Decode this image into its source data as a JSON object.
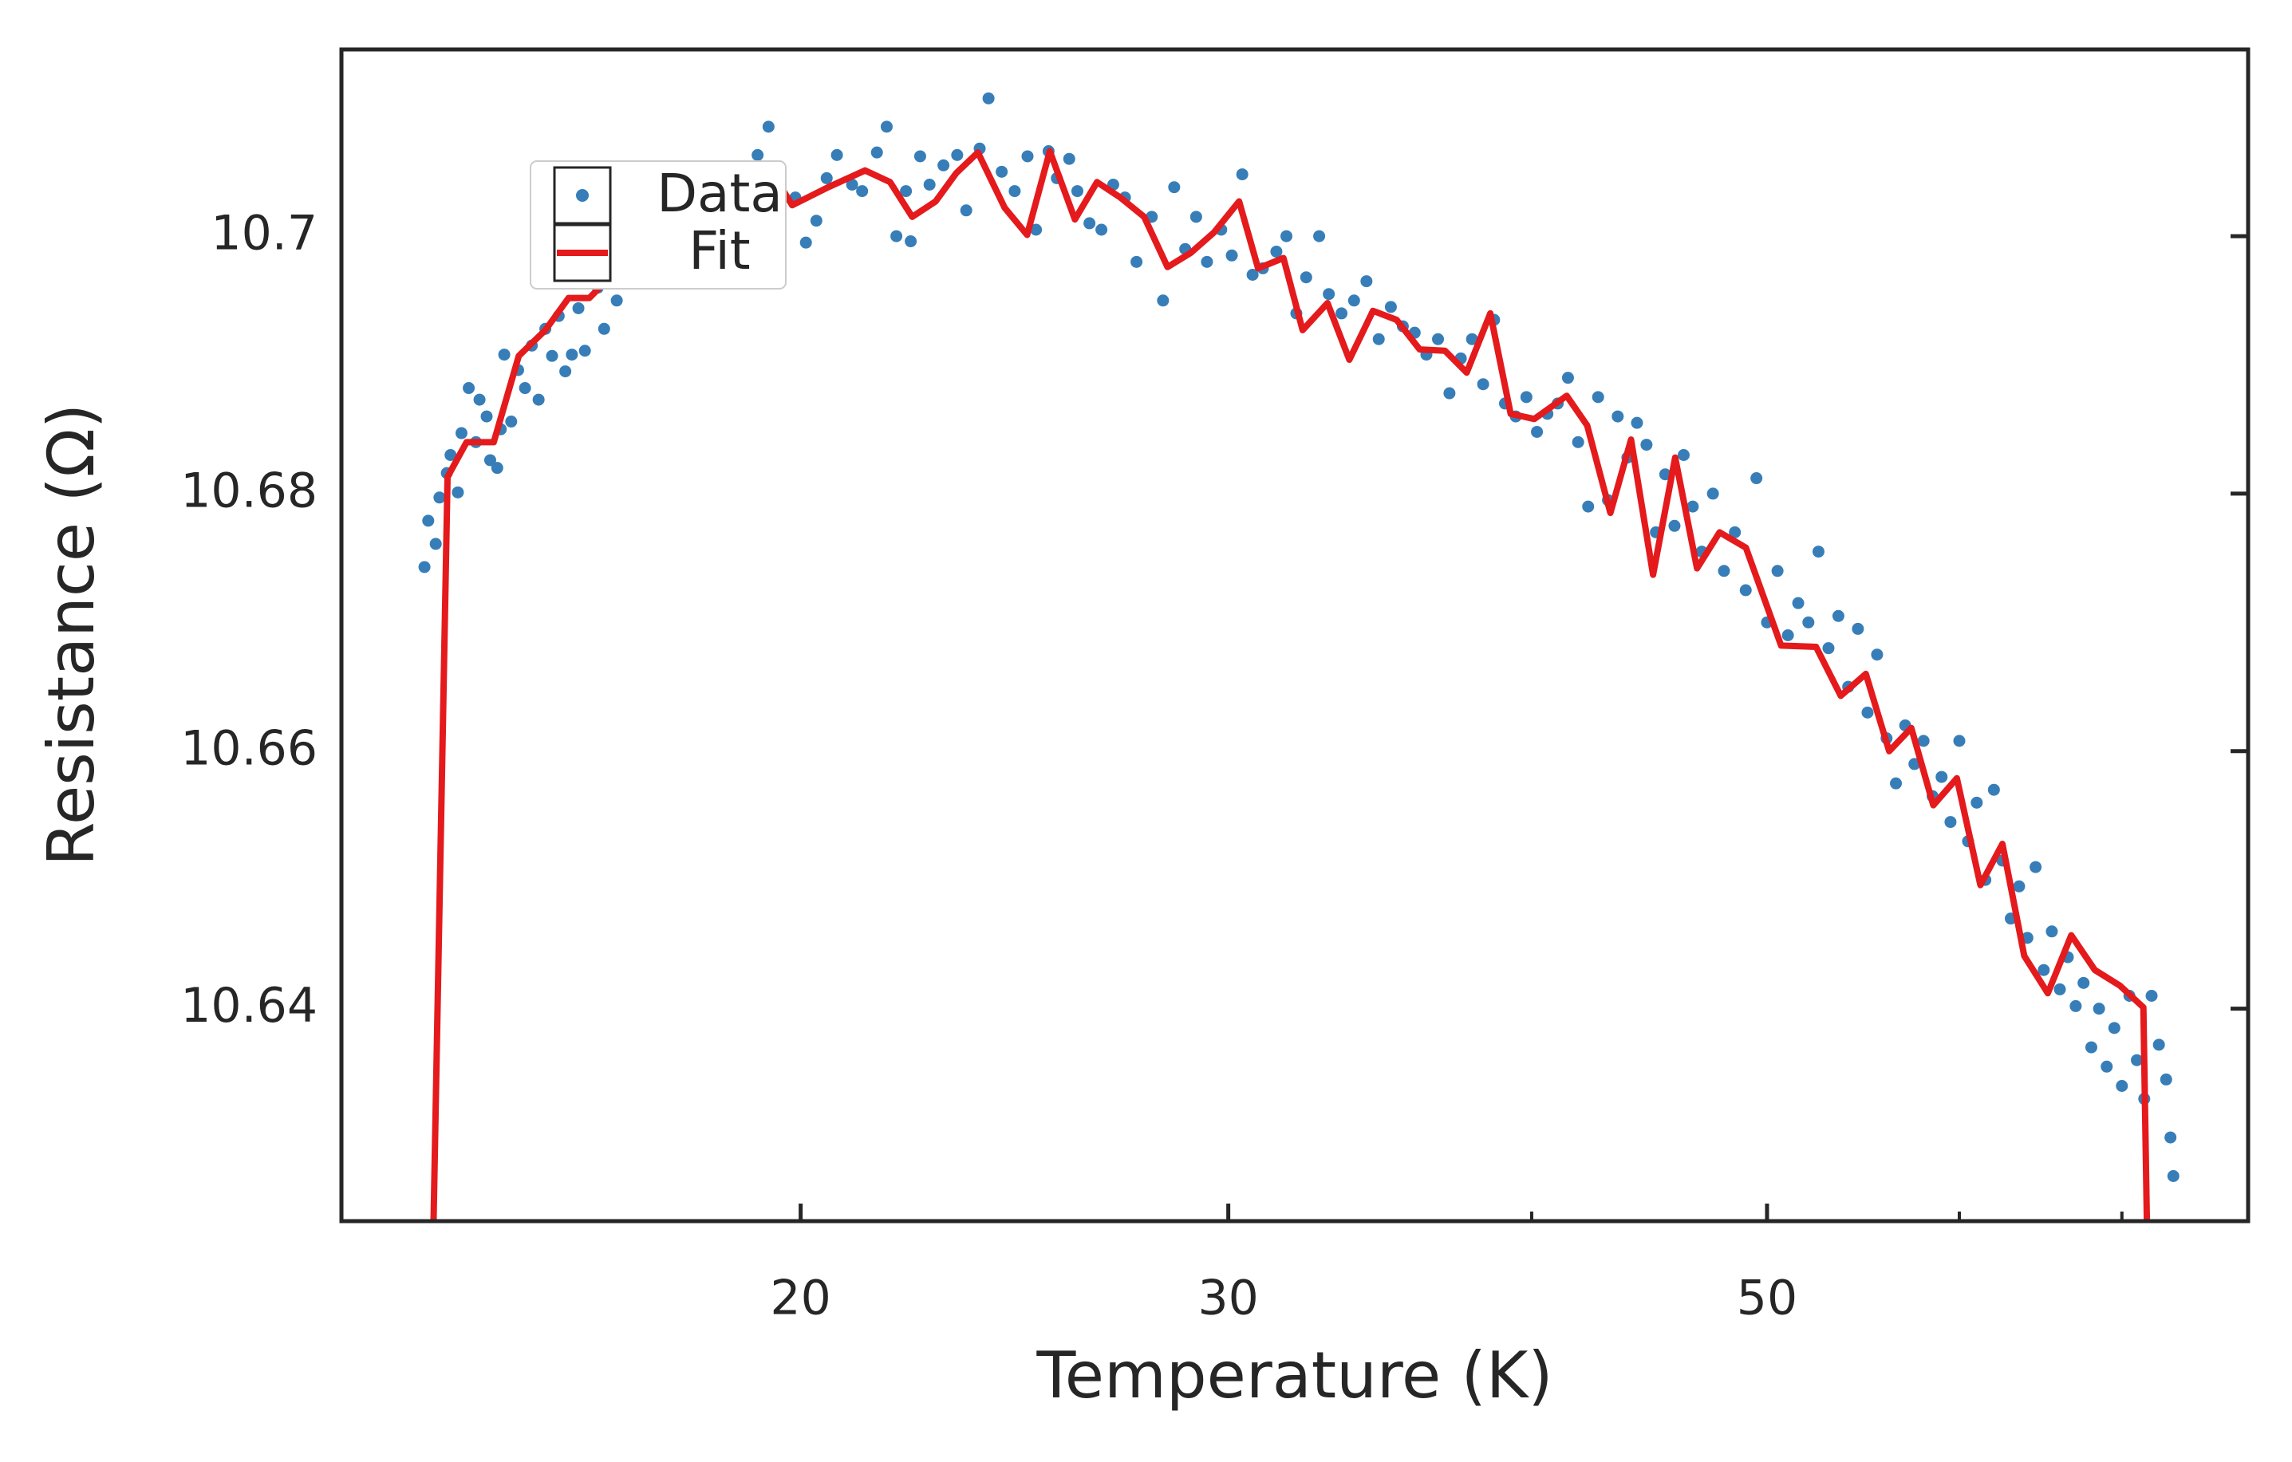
{
  "chart_data": {
    "type": "scatter",
    "xlabel": "Temperature (K)",
    "ylabel": "Resistance (Ω)",
    "xscale": "log",
    "xlim": [
      12.94,
      78.9
    ],
    "xticks": [
      20,
      30,
      50
    ],
    "xminor_ticks": [
      40,
      60,
      70
    ],
    "ylim": [
      10.6235,
      10.7145
    ],
    "yticks": [
      10.64,
      10.66,
      10.68,
      10.7
    ],
    "grid": false,
    "legend": "upper left",
    "series": [
      {
        "name": "Data",
        "type": "scatter",
        "color": "#377eb8",
        "x": [
          14.0,
          14.05,
          14.15,
          14.2,
          14.3,
          14.35,
          14.45,
          14.5,
          14.6,
          14.7,
          14.75,
          14.85,
          14.9,
          15.0,
          15.05,
          15.1,
          15.2,
          15.3,
          15.4,
          15.5,
          15.6,
          15.7,
          15.8,
          15.9,
          16.0,
          16.1,
          16.2,
          16.3,
          16.5,
          16.6,
          16.8,
          17.0,
          17.3,
          17.6,
          18.0,
          18.4,
          18.8,
          19.2,
          19.4,
          19.6,
          19.9,
          20.1,
          20.3,
          20.5,
          20.7,
          21.0,
          21.2,
          21.5,
          21.7,
          21.9,
          22.1,
          22.2,
          22.4,
          22.6,
          22.9,
          23.2,
          23.4,
          23.7,
          23.9,
          24.2,
          24.5,
          24.8,
          25.0,
          25.3,
          25.5,
          25.8,
          26.0,
          26.3,
          26.6,
          26.9,
          27.2,
          27.5,
          27.9,
          28.2,
          28.5,
          28.8,
          29.1,
          29.4,
          29.8,
          30.1,
          30.4,
          30.7,
          31.0,
          31.4,
          31.7,
          32.0,
          32.3,
          32.7,
          33.0,
          33.4,
          33.8,
          34.2,
          34.6,
          35.0,
          35.4,
          35.8,
          36.2,
          36.6,
          37.0,
          37.4,
          37.8,
          38.2,
          38.6,
          39.0,
          39.4,
          39.8,
          40.2,
          40.6,
          41.0,
          41.4,
          41.8,
          42.2,
          42.6,
          43.0,
          43.4,
          43.8,
          44.2,
          44.6,
          45.0,
          45.4,
          45.8,
          46.2,
          46.6,
          47.0,
          47.5,
          48.0,
          48.5,
          49.0,
          49.5,
          50.0,
          50.5,
          51.0,
          51.5,
          52.0,
          52.5,
          53.0,
          53.5,
          54.0,
          54.5,
          55.0,
          55.5,
          56.0,
          56.5,
          57.0,
          57.5,
          58.0,
          58.5,
          59.0,
          59.5,
          60.0,
          60.5,
          61.0,
          61.5,
          62.0,
          62.5,
          63.0,
          63.5,
          64.0,
          64.5,
          65.0,
          65.5,
          66.0,
          66.5,
          67.0,
          67.5,
          68.0,
          68.5,
          69.0,
          69.5,
          70.0,
          70.5,
          71.0,
          71.5,
          72.0,
          72.5,
          73.0,
          73.3,
          73.5
        ],
        "values": [
          10.6743,
          10.6779,
          10.6761,
          10.6797,
          10.6816,
          10.683,
          10.6801,
          10.6847,
          10.6882,
          10.684,
          10.6873,
          10.686,
          10.6826,
          10.682,
          10.685,
          10.6908,
          10.6856,
          10.6896,
          10.6882,
          10.6915,
          10.6873,
          10.6928,
          10.6907,
          10.6938,
          10.6895,
          10.6908,
          10.6944,
          10.6911,
          10.696,
          10.6928,
          10.695,
          10.6972,
          10.698,
          10.6995,
          10.7005,
          10.702,
          10.7048,
          10.7063,
          10.7085,
          10.7045,
          10.703,
          10.6995,
          10.7012,
          10.7045,
          10.7063,
          10.704,
          10.7035,
          10.7065,
          10.7085,
          10.7,
          10.7035,
          10.6996,
          10.7062,
          10.704,
          10.7055,
          10.7063,
          10.702,
          10.7068,
          10.7107,
          10.705,
          10.7035,
          10.7062,
          10.7005,
          10.7066,
          10.7045,
          10.706,
          10.7035,
          10.701,
          10.7005,
          10.704,
          10.703,
          10.698,
          10.7015,
          10.695,
          10.7038,
          10.699,
          10.7015,
          10.698,
          10.7005,
          10.6985,
          10.7048,
          10.697,
          10.6975,
          10.6988,
          10.7,
          10.694,
          10.6968,
          10.7,
          10.6955,
          10.694,
          10.695,
          10.6965,
          10.692,
          10.6945,
          10.693,
          10.6925,
          10.6908,
          10.692,
          10.6878,
          10.6905,
          10.692,
          10.6885,
          10.6935,
          10.687,
          10.686,
          10.6875,
          10.6848,
          10.6862,
          10.687,
          10.689,
          10.684,
          10.679,
          10.6875,
          10.6795,
          10.686,
          10.6828,
          10.6855,
          10.6838,
          10.677,
          10.6815,
          10.6775,
          10.683,
          10.679,
          10.6755,
          10.68,
          10.674,
          10.677,
          10.6725,
          10.6812,
          10.67,
          10.674,
          10.669,
          10.6715,
          10.67,
          10.6755,
          10.668,
          10.6705,
          10.665,
          10.6695,
          10.663,
          10.6675,
          10.661,
          10.6575,
          10.662,
          10.659,
          10.6608,
          10.6565,
          10.658,
          10.6545,
          10.6608,
          10.653,
          10.656,
          10.65,
          10.657,
          10.6515,
          10.647,
          10.6495,
          10.6455,
          10.651,
          10.643,
          10.646,
          10.6415,
          10.644,
          10.6402,
          10.642,
          10.637,
          10.64,
          10.6355,
          10.6385,
          10.634,
          10.641,
          10.636,
          10.633,
          10.641,
          10.6372,
          10.6345,
          10.63,
          10.627
        ]
      },
      {
        "name": "Fit",
        "type": "line",
        "color": "#e41a1c",
        "x": [
          14.11,
          14.31,
          14.57,
          14.95,
          15.31,
          15.7,
          16.05,
          16.37,
          16.79,
          17.26,
          17.99,
          18.76,
          19.43,
          19.84,
          20.53,
          21.26,
          21.77,
          22.23,
          22.73,
          23.18,
          23.66,
          24.27,
          24.79,
          25.33,
          25.94,
          26.49,
          27.08,
          27.7,
          28.32,
          28.95,
          29.6,
          30.31,
          30.86,
          31.61,
          32.19,
          32.96,
          33.65,
          34.41,
          35.19,
          35.97,
          36.84,
          37.61,
          38.46,
          39.21,
          40.1,
          41.35,
          42.16,
          43.1,
          43.95,
          44.88,
          45.83,
          46.79,
          47.8,
          49.01,
          50.67,
          52.38,
          53.62,
          54.91,
          56.14,
          57.33,
          58.54,
          59.86,
          61.21,
          62.5,
          63.81,
          65.25,
          66.72,
          68.23,
          69.86,
          71.44,
          71.73
        ],
        "values": [
          10.62,
          10.6813,
          10.684,
          10.684,
          10.6907,
          10.6927,
          10.6952,
          10.6952,
          10.6973,
          10.699,
          10.7013,
          10.7035,
          10.7052,
          10.7024,
          10.7038,
          10.7051,
          10.7042,
          10.7015,
          10.7027,
          10.7049,
          10.7065,
          10.7022,
          10.7001,
          10.7066,
          10.7013,
          10.7042,
          10.703,
          10.7015,
          10.6976,
          10.6987,
          10.7003,
          10.7027,
          10.6975,
          10.6983,
          10.6927,
          10.6948,
          10.6904,
          10.6942,
          10.6935,
          10.6912,
          10.6911,
          10.6894,
          10.694,
          10.6862,
          10.6858,
          10.6876,
          10.6853,
          10.6785,
          10.6842,
          10.6737,
          10.6828,
          10.6742,
          10.677,
          10.6758,
          10.6682,
          10.6681,
          10.6643,
          10.666,
          10.66,
          10.6618,
          10.6558,
          10.6579,
          10.6496,
          10.6528,
          10.6441,
          10.6412,
          10.6457,
          10.643,
          10.6418,
          10.6401,
          10.62
        ]
      }
    ]
  }
}
